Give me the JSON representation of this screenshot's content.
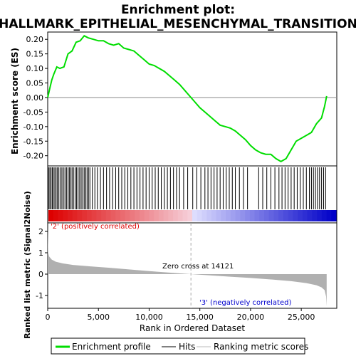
{
  "title_line1": "Enrichment plot:",
  "title_line2": "HALLMARK_EPITHELIAL_MESENCHYMAL_TRANSITION",
  "chart_data": [
    {
      "type": "line",
      "ylabel": "Enrichment score (ES)",
      "ylim": [
        -0.235,
        0.225
      ],
      "yticks": [
        "0.20",
        "0.15",
        "0.10",
        "0.05",
        "0.00",
        "-0.05",
        "-0.10",
        "-0.15",
        "-0.20"
      ],
      "ytick_values": [
        0.2,
        0.15,
        0.1,
        0.05,
        0.0,
        -0.05,
        -0.1,
        -0.15,
        -0.2
      ],
      "xlim": [
        0,
        28500
      ],
      "series": [
        {
          "name": "Enrichment profile",
          "color": "#00dd00",
          "x": [
            0,
            200,
            400,
            600,
            900,
            1200,
            1600,
            2000,
            2400,
            2800,
            3200,
            3600,
            4000,
            4500,
            5000,
            5500,
            6000,
            6500,
            7000,
            7500,
            8000,
            8500,
            9000,
            9500,
            10000,
            10500,
            11000,
            11500,
            12000,
            12500,
            13000,
            13500,
            14000,
            14500,
            15000,
            15500,
            16000,
            16500,
            17000,
            17500,
            18000,
            18500,
            19000,
            19500,
            20000,
            20500,
            21000,
            21500,
            22000,
            22500,
            23000,
            23500,
            24000,
            24500,
            25000,
            25500,
            26000,
            26500,
            27000,
            27300,
            27500
          ],
          "y": [
            0.0,
            0.03,
            0.06,
            0.08,
            0.105,
            0.1,
            0.105,
            0.15,
            0.16,
            0.19,
            0.195,
            0.212,
            0.205,
            0.2,
            0.195,
            0.195,
            0.185,
            0.18,
            0.185,
            0.17,
            0.165,
            0.16,
            0.145,
            0.13,
            0.115,
            0.11,
            0.1,
            0.09,
            0.075,
            0.06,
            0.045,
            0.025,
            0.005,
            -0.015,
            -0.035,
            -0.05,
            -0.065,
            -0.08,
            -0.095,
            -0.1,
            -0.105,
            -0.115,
            -0.13,
            -0.145,
            -0.165,
            -0.18,
            -0.19,
            -0.195,
            -0.195,
            -0.21,
            -0.22,
            -0.21,
            -0.18,
            -0.15,
            -0.14,
            -0.13,
            -0.12,
            -0.09,
            -0.07,
            -0.03,
            0.005
          ]
        }
      ]
    },
    {
      "type": "hits",
      "hit_positions": [
        90,
        210,
        330,
        450,
        560,
        700,
        830,
        960,
        1100,
        1250,
        1400,
        1550,
        1700,
        1850,
        2000,
        2130,
        2260,
        2400,
        2540,
        2700,
        2850,
        3000,
        3150,
        3300,
        3450,
        3600,
        3750,
        3880,
        4020,
        4160,
        4400,
        4650,
        4900,
        5200,
        5500,
        5800,
        6100,
        6400,
        6700,
        7000,
        7300,
        7600,
        7900,
        8200,
        8500,
        8800,
        9100,
        9400,
        9700,
        10000,
        10300,
        10600,
        10900,
        11200,
        11500,
        11800,
        12100,
        12400,
        12700,
        13000,
        13400,
        13800,
        14300,
        14700,
        15100,
        15500,
        15800,
        16100,
        16400,
        16700,
        17000,
        17300,
        17600,
        17900,
        18200,
        18500,
        18900,
        19300,
        19700,
        20800,
        21200,
        21600,
        22000,
        22400,
        22800,
        23100,
        23400,
        23700,
        24000,
        24300,
        24600,
        24900,
        25200,
        25500,
        25800,
        26000,
        26200,
        26400,
        26600,
        26800,
        27000,
        27200,
        27400
      ]
    },
    {
      "type": "area",
      "ylabel": "Ranked list metric (Signal2Noise)",
      "xlabel": "Rank in Ordered Dataset",
      "ylim": [
        -1.6,
        2.4
      ],
      "yticks": [
        "2",
        "1",
        "0",
        "-1"
      ],
      "ytick_values": [
        2,
        1,
        0,
        -1
      ],
      "xlim": [
        0,
        28500
      ],
      "xticks": [
        "0",
        "5,000",
        "10,000",
        "15,000",
        "20,000",
        "25,000"
      ],
      "xtick_values": [
        0,
        5000,
        10000,
        15000,
        20000,
        25000
      ],
      "x": [
        0,
        50,
        150,
        400,
        800,
        1500,
        2500,
        4000,
        6000,
        8000,
        10000,
        12000,
        14121,
        16000,
        18000,
        20000,
        22000,
        24000,
        25500,
        26500,
        27000,
        27300,
        27450,
        27500
      ],
      "y": [
        2.2,
        1.0,
        0.82,
        0.68,
        0.58,
        0.5,
        0.43,
        0.37,
        0.3,
        0.22,
        0.14,
        0.07,
        0.0,
        -0.06,
        -0.12,
        -0.18,
        -0.25,
        -0.33,
        -0.42,
        -0.52,
        -0.62,
        -0.75,
        -1.05,
        -1.5
      ],
      "fill_color": "#b0b0b0",
      "zero_cross_rank": 14121,
      "zero_cross_label": "Zero cross at 14121",
      "pos_label": "'2' (positively correlated)",
      "neg_label": "'3' (negatively correlated)",
      "pos_color": "#dd0000",
      "neg_color": "#0000cc"
    }
  ],
  "legend": {
    "items": [
      {
        "label": "Enrichment profile",
        "color": "#00dd00"
      },
      {
        "label": "Hits",
        "color": "#000000"
      },
      {
        "label": "Ranking metric scores",
        "color": "#bbbbbb"
      }
    ]
  }
}
